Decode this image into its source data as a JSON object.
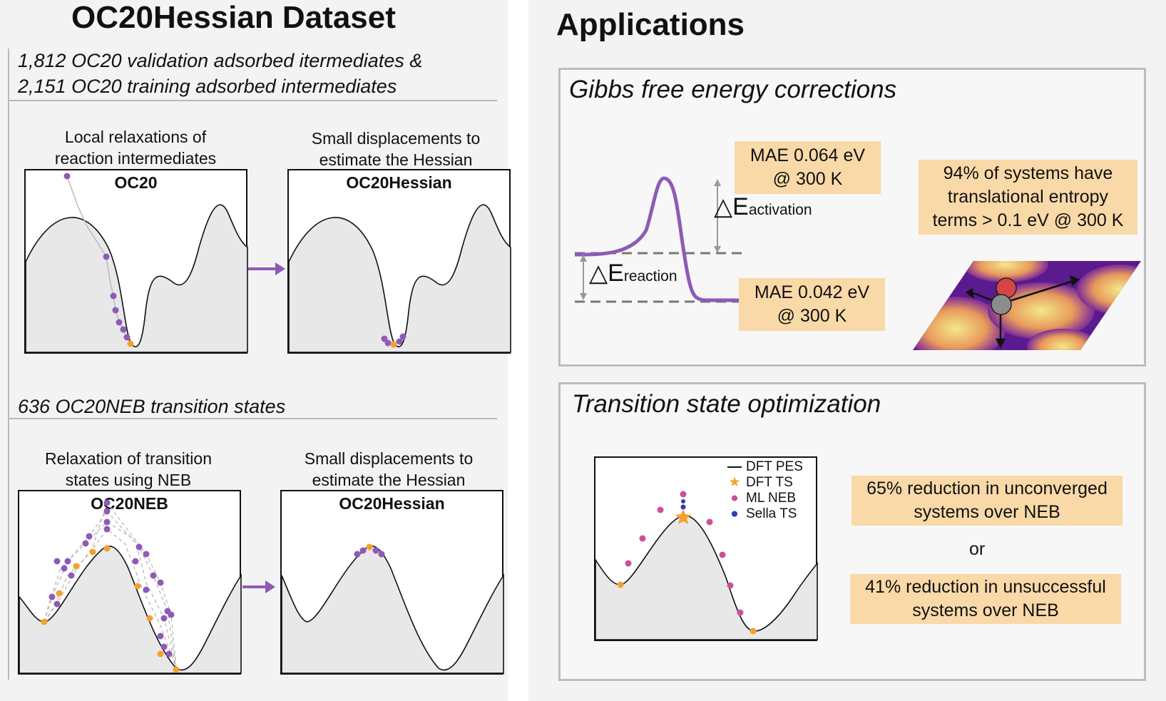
{
  "left": {
    "title": "OC20Hessian Dataset",
    "section1": {
      "subtitle_line1": "1,812 OC20 validation adsorbed itermediates &",
      "subtitle_line2": "2,151 OC20 training adsorbed intermediates",
      "caption_left_line1": "Local relaxations of",
      "caption_left_line2": "reaction intermediates",
      "box_left_title": "OC20",
      "caption_right_line1": "Small displacements to",
      "caption_right_line2": "estimate the Hessian",
      "box_right_title": "OC20Hessian"
    },
    "section2": {
      "subtitle": "636 OC20NEB transition states",
      "caption_left_line1": "Relaxation of transition",
      "caption_left_line2": "states using NEB",
      "box_left_title": "OC20NEB",
      "caption_right_line1": "Small displacements to",
      "caption_right_line2": "estimate the Hessian",
      "box_right_title": "OC20Hessian"
    }
  },
  "right": {
    "title": "Applications",
    "gibbs": {
      "title": "Gibbs free energy corrections",
      "mae_activation_line1": "MAE 0.064 eV",
      "mae_activation_line2": "@ 300 K",
      "delta_activation_symbol": "△E",
      "delta_activation_sub": "activation",
      "delta_reaction_symbol": "△E",
      "delta_reaction_sub": "reaction",
      "mae_reaction_line1": "MAE 0.042 eV",
      "mae_reaction_line2": "@ 300 K",
      "entropy_line1": "94% of systems have",
      "entropy_line2": "translational entropy",
      "entropy_line3": "terms > 0.1 eV @ 300 K"
    },
    "ts": {
      "title": "Transition state optimization",
      "legend": [
        "DFT PES",
        "DFT TS",
        "ML NEB",
        "Sella TS"
      ],
      "result1_line1": "65% reduction in unconverged",
      "result1_line2": "systems over NEB",
      "or": "or",
      "result2_line1": "41% reduction in unsuccessful",
      "result2_line2": "systems over NEB"
    }
  },
  "colors": {
    "purple": "#8e5ab8",
    "orange": "#f5a02c",
    "tag_bg": "#f9d9a8",
    "ml_neb": "#cc4f9a",
    "sella": "#2a3db0"
  }
}
